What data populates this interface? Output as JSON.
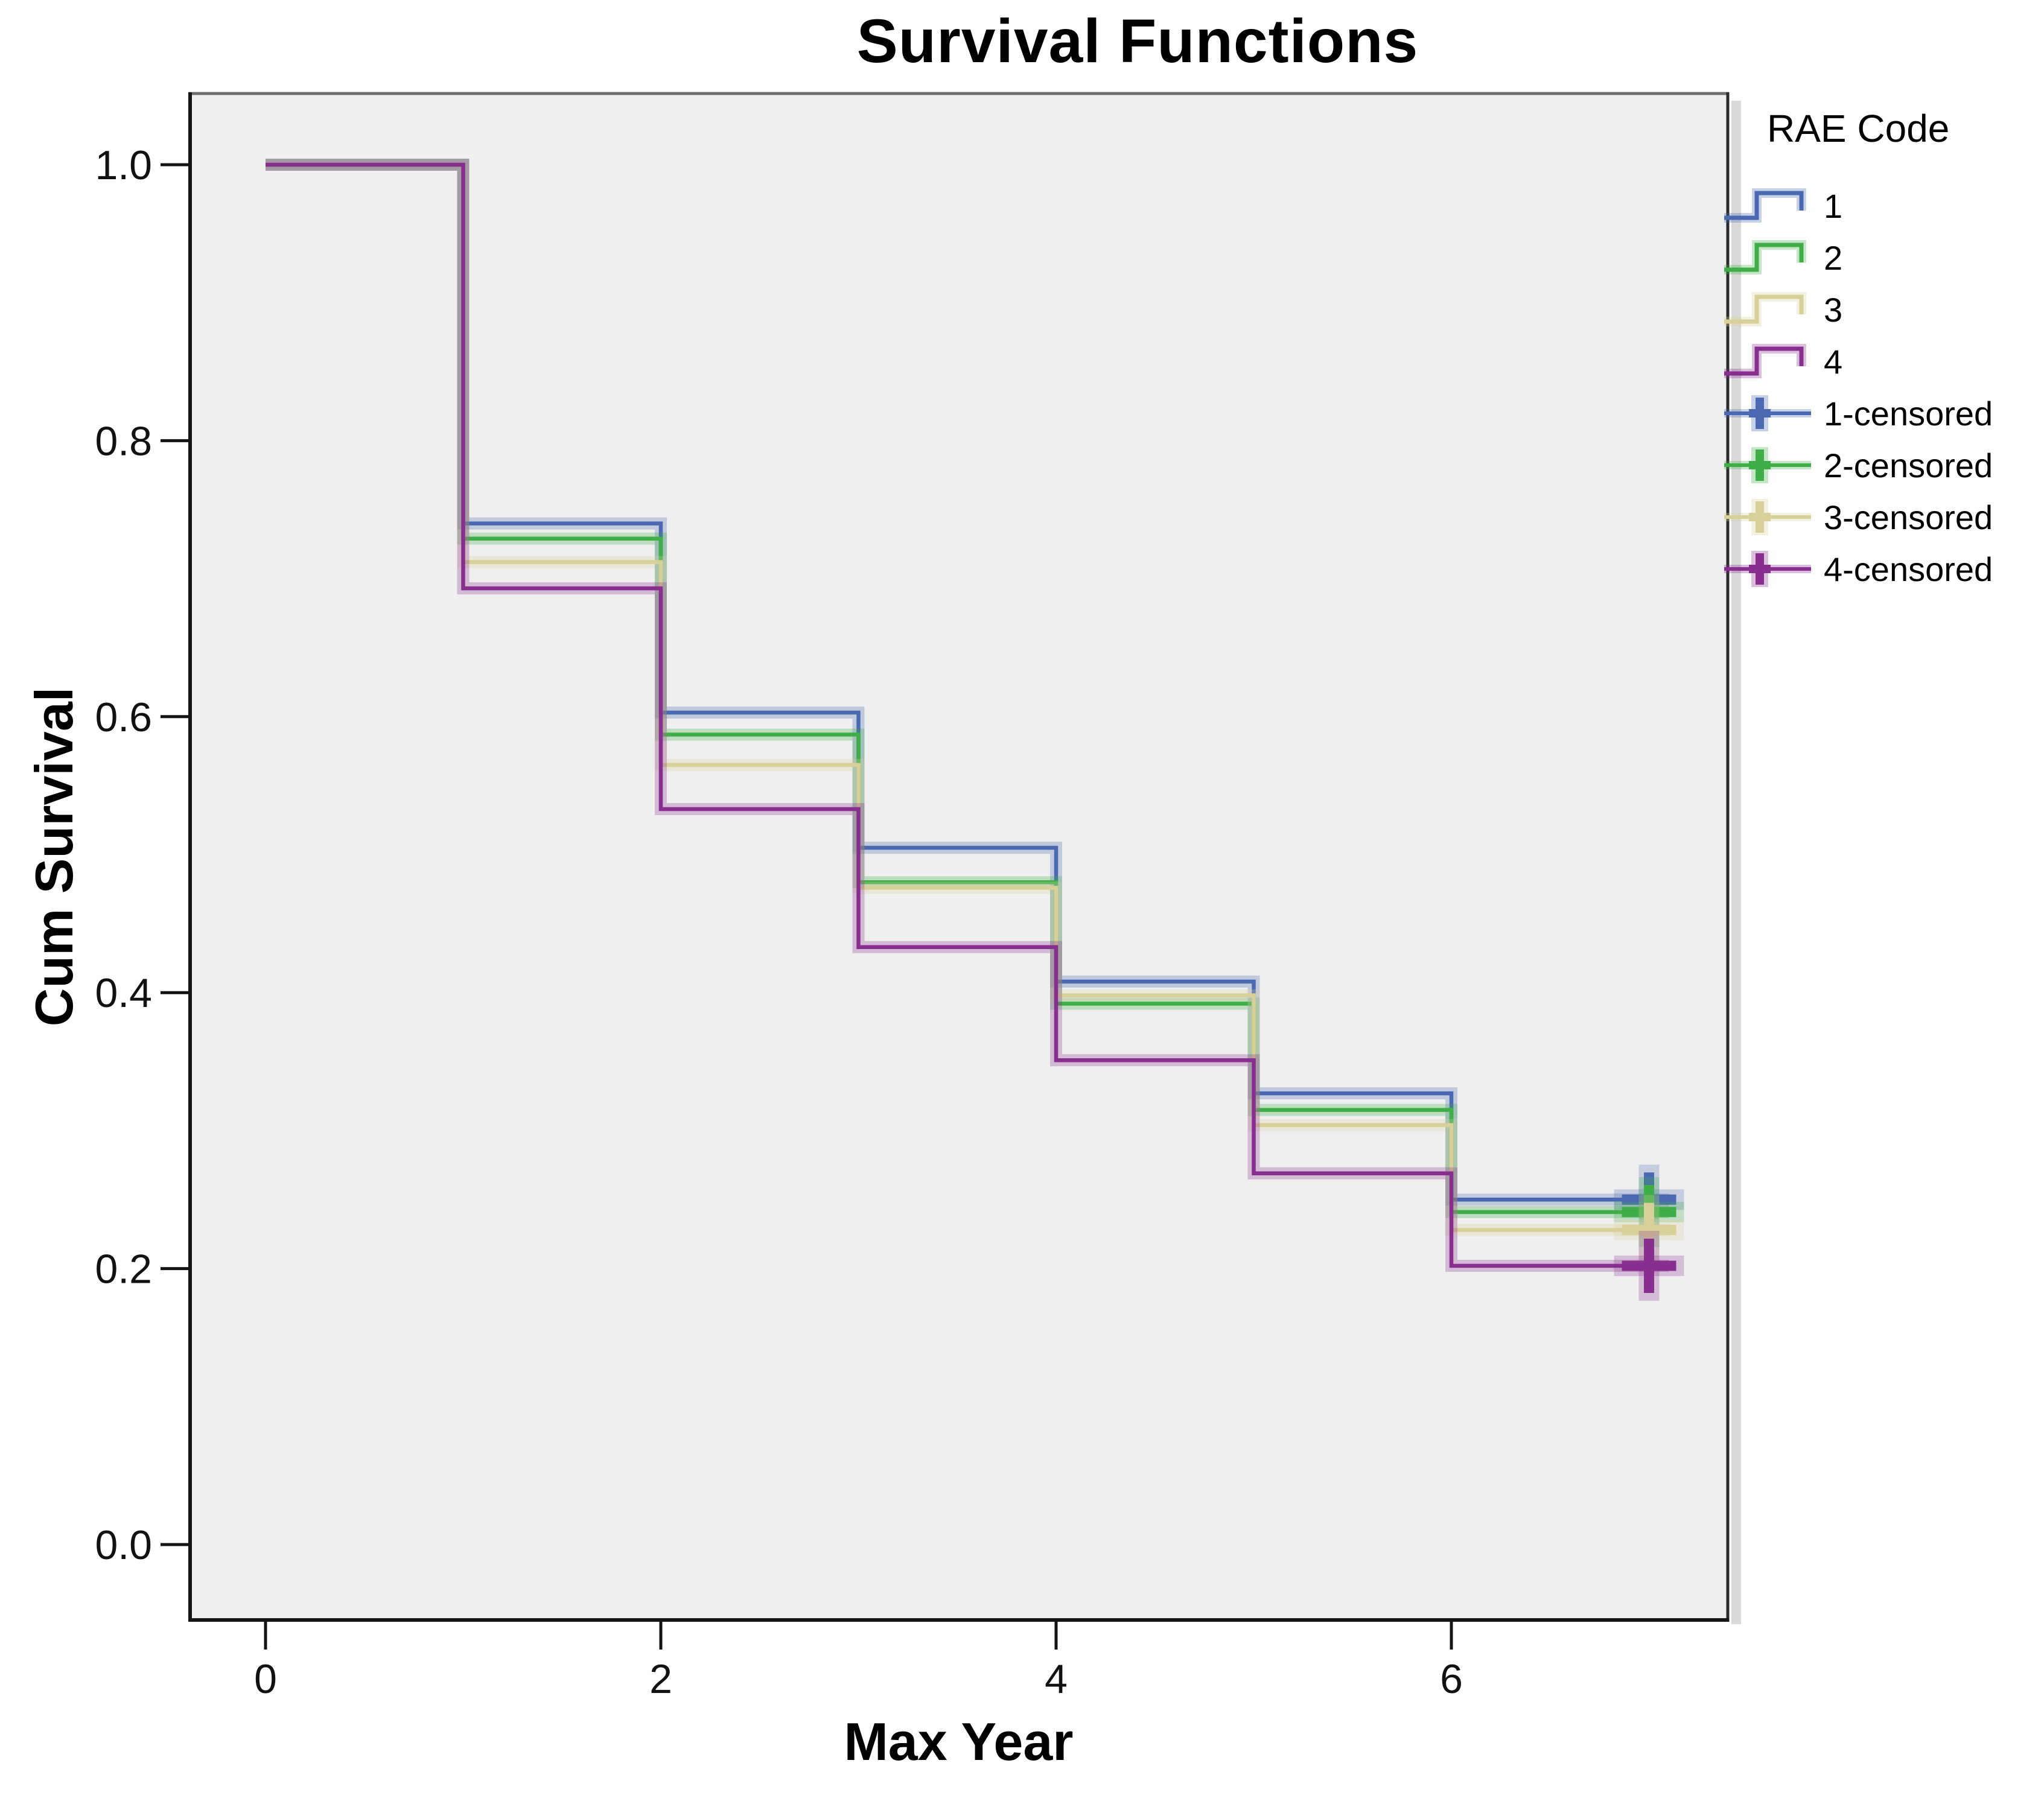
{
  "chart_data": {
    "type": "line",
    "step": true,
    "title": "Survival Functions",
    "xlabel": "Max Year",
    "ylabel": "Cum Survival",
    "legend_title": "RAE Code",
    "legend_position": "right",
    "grid": false,
    "plot_background": "#efefef",
    "panel_shadow_color": "#d9d9d9",
    "axis_color": "#141414",
    "xlim": [
      -0.4,
      7.4
    ],
    "ylim": [
      -0.055,
      1.05
    ],
    "x_ticks": [
      {
        "value": 0,
        "label": "0"
      },
      {
        "value": 2,
        "label": "2"
      },
      {
        "value": 4,
        "label": "4"
      },
      {
        "value": 6,
        "label": "6"
      }
    ],
    "y_ticks": [
      {
        "value": 1.0,
        "label": "1.0"
      },
      {
        "value": 0.8,
        "label": "0.8"
      },
      {
        "value": 0.6,
        "label": "0.6"
      },
      {
        "value": 0.4,
        "label": "0.4"
      },
      {
        "value": 0.2,
        "label": "0.2"
      },
      {
        "value": 0.0,
        "label": "0.0"
      }
    ],
    "step_x": [
      0,
      1,
      2,
      3,
      4,
      5,
      6,
      7
    ],
    "series": [
      {
        "name": "1",
        "censored_name": "1-censored",
        "color": "#4a69b1",
        "levels": [
          1.0,
          0.74,
          0.603,
          0.505,
          0.408,
          0.327,
          0.25
        ],
        "censored_point": {
          "x": 7,
          "y": 0.25
        }
      },
      {
        "name": "2",
        "censored_name": "2-censored",
        "color": "#3fae49",
        "levels": [
          1.0,
          0.729,
          0.587,
          0.48,
          0.392,
          0.315,
          0.241
        ],
        "censored_point": {
          "x": 7,
          "y": 0.241
        }
      },
      {
        "name": "3",
        "censored_name": "3-censored",
        "color": "#d7d099",
        "levels": [
          1.0,
          0.712,
          0.565,
          0.476,
          0.398,
          0.304,
          0.228
        ],
        "censored_point": {
          "x": 7,
          "y": 0.228
        }
      },
      {
        "name": "4",
        "censored_name": "4-censored",
        "color": "#882e8e",
        "levels": [
          1.0,
          0.693,
          0.533,
          0.433,
          0.351,
          0.269,
          0.202
        ],
        "censored_point": {
          "x": 7,
          "y": 0.202
        }
      }
    ]
  }
}
